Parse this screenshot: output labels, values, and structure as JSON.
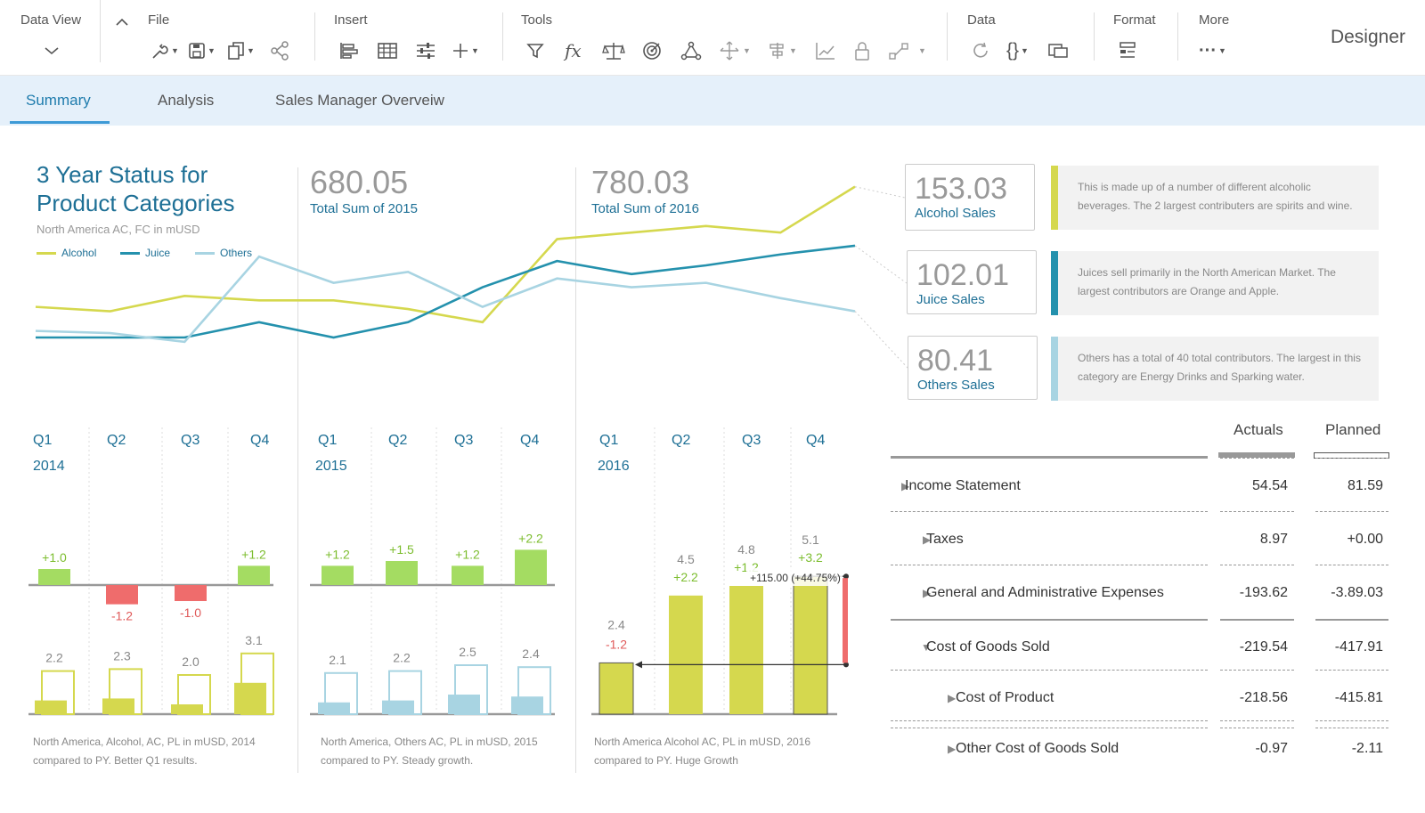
{
  "toolbar": {
    "data_view": "Data View",
    "file": "File",
    "insert": "Insert",
    "tools": "Tools",
    "data": "Data",
    "format": "Format",
    "more": "More",
    "designer": "Designer",
    "fx": "fx",
    "braces": "{}",
    "more_dots": "···"
  },
  "tabs": [
    "Summary",
    "Analysis",
    "Sales Manager Overveiw"
  ],
  "colors": {
    "alcohol": "#d5d84e",
    "juice": "#2491ad",
    "others": "#a8d4e2",
    "positive": "#a4dc62",
    "negative": "#ef6c6c",
    "accent": "#1d6f95"
  },
  "header": {
    "title": "3 Year Status for Product Categories",
    "subtitle": "North America AC, FC in mUSD",
    "legend": [
      "Alcohol",
      "Juice",
      "Others"
    ]
  },
  "kpis": {
    "y2015": {
      "value": "680.05",
      "label": "Total Sum of 2015"
    },
    "y2016": {
      "value": "780.03",
      "label": "Total Sum of 2016"
    }
  },
  "side_kpis": [
    {
      "value": "153.03",
      "label": "Alcohol Sales",
      "note": "This is made up of a number of different alcoholic beverages. The 2 largest contributers are spirits and wine."
    },
    {
      "value": "102.01",
      "label": "Juice Sales",
      "note": "Juices sell primarily in the North American Market. The largest contributors are Orange and Apple."
    },
    {
      "value": "80.41",
      "label": "Others Sales",
      "note": "Others has a total of 40 total contributors. The largest  in this category are Energy Drinks and Sparking water."
    }
  ],
  "chart_data": [
    {
      "type": "line",
      "x": [
        "2014 Q1",
        "2014 Q2",
        "2014 Q3",
        "2014 Q4",
        "2015 Q1",
        "2015 Q2",
        "2015 Q3",
        "2015 Q4",
        "2016 Q1",
        "2016 Q2",
        "2016 Q3",
        "2016 Q4"
      ],
      "series": [
        {
          "name": "Alcohol",
          "values": [
            47,
            45,
            52,
            50,
            50,
            46,
            40,
            78,
            81,
            84,
            81,
            102
          ]
        },
        {
          "name": "Juice",
          "values": [
            33,
            33,
            33,
            40,
            33,
            40,
            56,
            68,
            62,
            66,
            71,
            75
          ]
        },
        {
          "name": "Others",
          "values": [
            36,
            35,
            31,
            70,
            58,
            63,
            47,
            60,
            56,
            58,
            51,
            45
          ]
        }
      ]
    },
    {
      "type": "bar",
      "year": "2014",
      "categories": [
        "Q1",
        "Q2",
        "Q3",
        "Q4"
      ],
      "deltas": [
        1.0,
        -1.2,
        -1.0,
        1.2
      ],
      "delta_labels": [
        "+1.0",
        "-1.2",
        "-1.0",
        "+1.2"
      ],
      "values": [
        2.2,
        2.3,
        2.0,
        3.1
      ],
      "footnote": [
        "North America, Alcohol, AC, PL in mUSD, 2014",
        "compared to PY. Better Q1 results."
      ]
    },
    {
      "type": "bar",
      "year": "2015",
      "categories": [
        "Q1",
        "Q2",
        "Q3",
        "Q4"
      ],
      "deltas": [
        1.2,
        1.5,
        1.2,
        2.2
      ],
      "delta_labels": [
        "+1.2",
        "+1.5",
        "+1.2",
        "+2.2"
      ],
      "values": [
        2.1,
        2.2,
        2.5,
        2.4
      ],
      "footnote": [
        "North America, Others AC, PL in mUSD, 2015",
        "compared to PY. Steady growth."
      ]
    },
    {
      "type": "bar",
      "year": "2016",
      "categories": [
        "Q1",
        "Q2",
        "Q3",
        "Q4"
      ],
      "values": [
        2.4,
        4.5,
        4.8,
        5.1
      ],
      "delta_labels": [
        "-1.2",
        "+2.2",
        "+1.2",
        "+3.2"
      ],
      "annotation": "+115.00 (+44.75%)",
      "footnote": [
        "North America Alcohol AC, PL in mUSD, 2016",
        "compared to PY. Huge Growth"
      ]
    }
  ],
  "table": {
    "headers": [
      "Actuals",
      "Planned"
    ],
    "rows": [
      {
        "label": "Income Statement",
        "actual": "54.54",
        "planned": "81.59",
        "expander": "▶"
      },
      {
        "label": "Taxes",
        "actual": "8.97",
        "planned": "+0.00",
        "expander": "▶"
      },
      {
        "label": "General and Administrative Expenses",
        "actual": "-193.62",
        "planned": "-3.89.03",
        "expander": "▶"
      },
      {
        "label": "Cost of Goods Sold",
        "actual": "-219.54",
        "planned": "-417.91",
        "expander": "▼"
      },
      {
        "label": "Cost of Product",
        "actual": "-218.56",
        "planned": "-415.81",
        "expander": "▶"
      },
      {
        "label": "Other Cost of Goods Sold",
        "actual": "-0.97",
        "planned": "-2.11",
        "expander": "▶"
      }
    ]
  }
}
